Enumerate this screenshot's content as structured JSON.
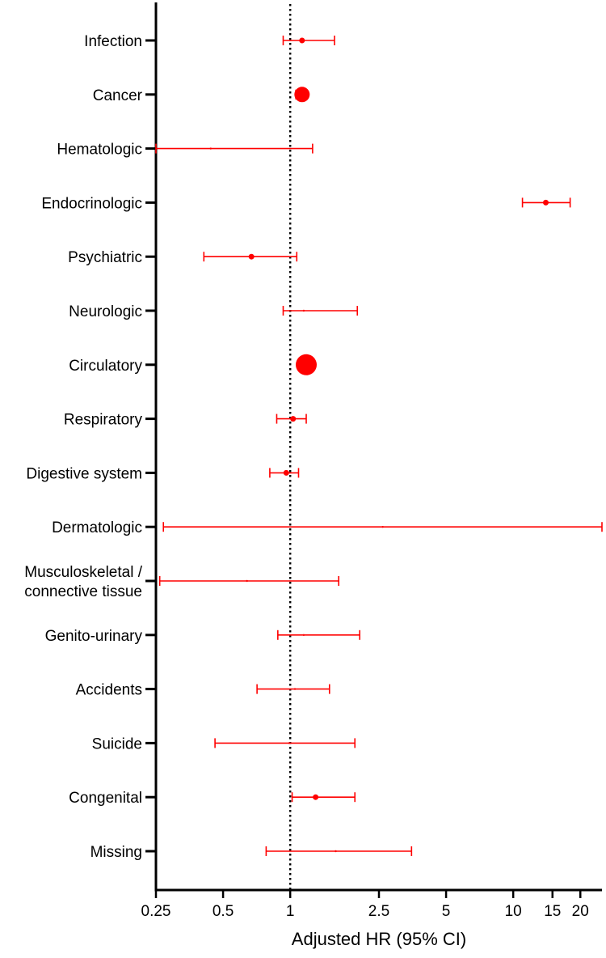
{
  "chart_data": {
    "type": "scatter",
    "subtype": "forest-plot",
    "xlabel": "Adjusted HR (95% CI)",
    "x_scale": "log",
    "xlim": [
      0.25,
      25
    ],
    "x_ticks": [
      0.25,
      0.5,
      1,
      2.5,
      5,
      10,
      15,
      20
    ],
    "x_tick_labels": [
      "0.25",
      "0.5",
      "1",
      "2.5",
      "5",
      "10",
      "15",
      "20"
    ],
    "reference_line": 1,
    "colors": {
      "points": "#ff0000",
      "axis": "#000000",
      "reference": "#000000"
    },
    "categories": [
      {
        "label": [
          "Infection"
        ],
        "hr": 1.13,
        "lo": 0.93,
        "hi": 1.58,
        "size": "small"
      },
      {
        "label": [
          "Cancer"
        ],
        "hr": 1.13,
        "lo": 1.06,
        "hi": 1.19,
        "size": "large"
      },
      {
        "label": [
          "Hematologic"
        ],
        "hr": 0.44,
        "lo": 0.25,
        "hi": 1.26,
        "size": "tiny"
      },
      {
        "label": [
          "Endocrinologic"
        ],
        "hr": 14.0,
        "lo": 11.0,
        "hi": 18.0,
        "size": "small"
      },
      {
        "label": [
          "Psychiatric"
        ],
        "hr": 0.67,
        "lo": 0.41,
        "hi": 1.07,
        "size": "small"
      },
      {
        "label": [
          "Neurologic"
        ],
        "hr": 1.15,
        "lo": 0.93,
        "hi": 2.0,
        "size": "tiny"
      },
      {
        "label": [
          "Circulatory"
        ],
        "hr": 1.18,
        "lo": 1.11,
        "hi": 1.27,
        "size": "xlarge"
      },
      {
        "label": [
          "Respiratory"
        ],
        "hr": 1.03,
        "lo": 0.87,
        "hi": 1.18,
        "size": "small"
      },
      {
        "label": [
          "Digestive system"
        ],
        "hr": 0.96,
        "lo": 0.81,
        "hi": 1.09,
        "size": "small"
      },
      {
        "label": [
          "Dermatologic"
        ],
        "hr": 2.6,
        "lo": 0.27,
        "hi": 25,
        "size": "tiny"
      },
      {
        "label": [
          "Musculoskeletal /",
          "connective tissue"
        ],
        "hr": 0.64,
        "lo": 0.26,
        "hi": 1.65,
        "size": "tiny"
      },
      {
        "label": [
          "Genito-urinary"
        ],
        "hr": 1.15,
        "lo": 0.88,
        "hi": 2.05,
        "size": "tiny"
      },
      {
        "label": [
          "Accidents"
        ],
        "hr": 1.05,
        "lo": 0.71,
        "hi": 1.5,
        "size": "tiny"
      },
      {
        "label": [
          "Suicide"
        ],
        "hr": 0.99,
        "lo": 0.46,
        "hi": 1.95,
        "size": "tiny"
      },
      {
        "label": [
          "Congenital"
        ],
        "hr": 1.3,
        "lo": 1.02,
        "hi": 1.95,
        "size": "small"
      },
      {
        "label": [
          "Missing"
        ],
        "hr": 1.6,
        "lo": 0.78,
        "hi": 3.5,
        "size": "tiny"
      }
    ]
  }
}
